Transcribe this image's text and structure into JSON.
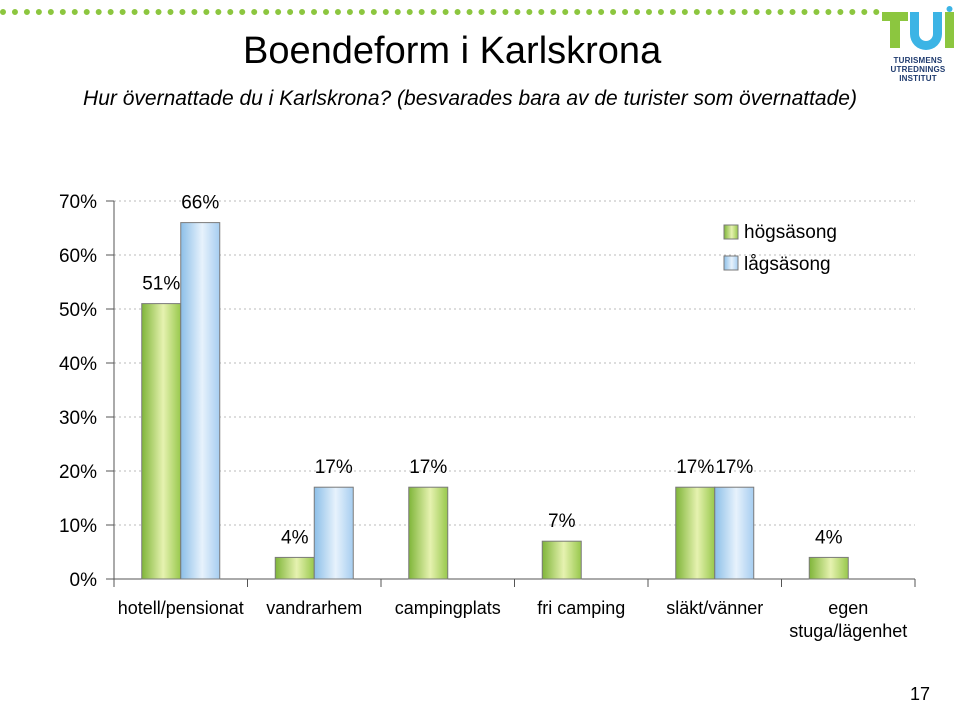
{
  "title": "Boendeform i Karlskrona",
  "subtitle": "Hur övernattade du i Karlskrona? (besvarades bara av de turister som övernattade)",
  "logo": {
    "wordmark": "TUI",
    "lines": [
      "TURISMENS",
      "UTREDNINGS",
      "INSTITUT"
    ],
    "colors": {
      "primary": "#8cc63f",
      "secondary": "#3cb4e5"
    }
  },
  "page_number": "17",
  "colors": {
    "hogsasong": "#b7d96a",
    "lagsasong": "#b9d8f5",
    "bar_outline": "#7a7a7a",
    "grid": "#bbbbbb",
    "axis": "#555555"
  },
  "chart_data": {
    "type": "bar",
    "title": "",
    "xlabel": "",
    "ylabel": "",
    "ylim": [
      0,
      70
    ],
    "yticks": [
      0,
      10,
      20,
      30,
      40,
      50,
      60,
      70
    ],
    "ytick_labels": [
      "0%",
      "10%",
      "20%",
      "30%",
      "40%",
      "50%",
      "60%",
      "70%"
    ],
    "grid": true,
    "legend_position": "top-right",
    "categories": [
      [
        "hotell/pensionat"
      ],
      [
        "vandrarhem"
      ],
      [
        "campingplats"
      ],
      [
        "fri camping"
      ],
      [
        "släkt/vänner"
      ],
      [
        "egen",
        "stuga/lägenhet"
      ]
    ],
    "series": [
      {
        "name": "högsäsong",
        "values": [
          51,
          4,
          17,
          7,
          17,
          4
        ],
        "labels": [
          "51%",
          "4%",
          "17%",
          "7%",
          "17%",
          "4%"
        ]
      },
      {
        "name": "lågsäsong",
        "values": [
          66,
          17,
          null,
          null,
          17,
          null
        ],
        "labels": [
          "66%",
          "17%",
          "",
          "",
          "17%",
          ""
        ]
      }
    ]
  }
}
